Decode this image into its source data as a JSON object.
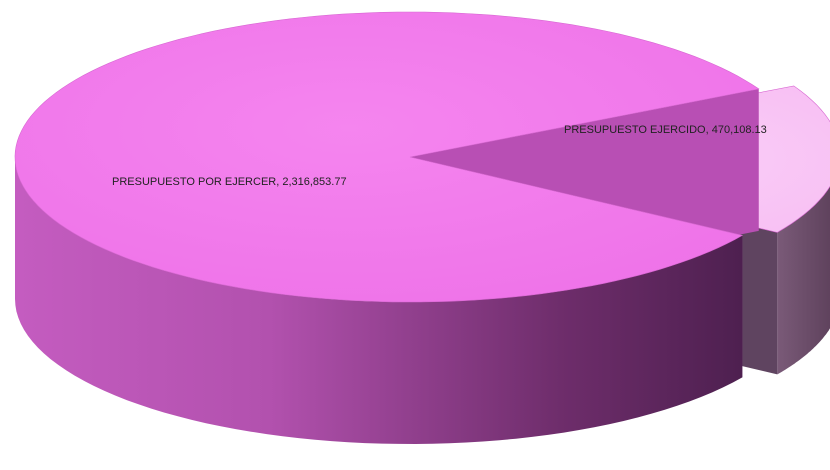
{
  "chart_data": {
    "type": "pie",
    "style": "3d-exploded",
    "slices": [
      {
        "label": "PRESUPUESTO POR EJERCER, 2,316,853.77",
        "value": 2316853.77,
        "color": "#f27cec"
      },
      {
        "label": "PRESUPUESTO EJERCIDO, 470,108.13",
        "value": 470108.13,
        "color": "#f9c6f6"
      }
    ]
  }
}
